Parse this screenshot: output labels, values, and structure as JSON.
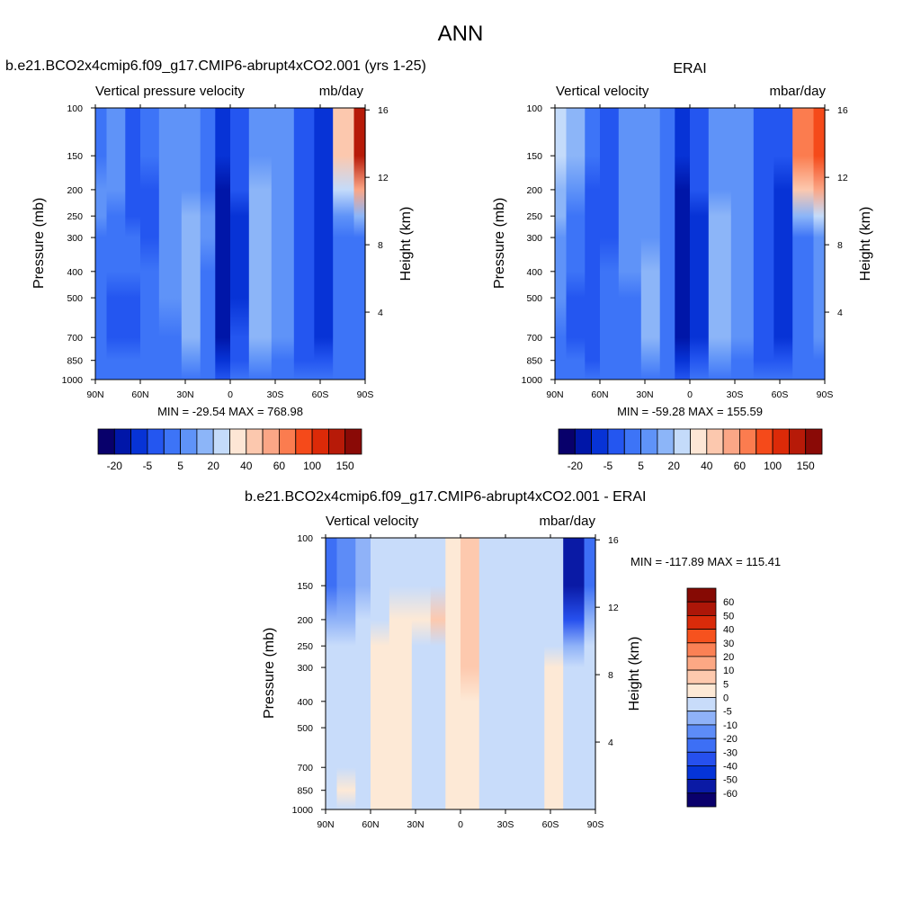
{
  "figure": {
    "title": "ANN"
  },
  "colors": {
    "test_ctrl_palette": [
      "#08006b",
      "#0016a8",
      "#0733d6",
      "#2456f0",
      "#3d74f7",
      "#5f93f8",
      "#8cb5f8",
      "#c4dbfa",
      "#fde6d5",
      "#fcc8ae",
      "#fba686",
      "#fb7c4f",
      "#f54a1a",
      "#dc2a08",
      "#b71a08",
      "#8a0a06"
    ],
    "diff_palette": [
      "#0a006c",
      "#0a1aa5",
      "#0534d8",
      "#2650ee",
      "#3d6ff5",
      "#5d8cf7",
      "#8fb2f8",
      "#c8dcfa",
      "#fde9d6",
      "#fdc9ae",
      "#fca884",
      "#fb8155",
      "#f6521e",
      "#d92b0a",
      "#ad1608",
      "#860a04"
    ]
  },
  "chart_data": [
    {
      "id": "test",
      "type": "heatmap",
      "title": "b.e21.BCO2x4cmip6.f09_g17.CMIP6-abrupt4xCO2.001 (yrs 1-25)",
      "left_label": "Vertical pressure velocity",
      "right_label": "mb/day",
      "xlabel": "",
      "ylabel": "Pressure (mb)",
      "ylabel_right": "Height (km)",
      "x_ticks": [
        "90N",
        "60N",
        "30N",
        "0",
        "30S",
        "60S",
        "90S"
      ],
      "x_values": [
        90,
        60,
        30,
        0,
        -30,
        -60,
        -90
      ],
      "y_ticks": [
        100,
        150,
        200,
        250,
        300,
        400,
        500,
        700,
        850,
        1000
      ],
      "y_range": [
        100,
        1000
      ],
      "height_ticks": [
        4,
        8,
        12,
        16
      ],
      "stats_label": "MIN = -29.54  MAX = 768.98",
      "min": -29.54,
      "max": 768.98,
      "colorbar_orientation": "horizontal",
      "colorbar_labels": [
        "-20",
        "-5",
        "5",
        "20",
        "40",
        "60",
        "100",
        "150"
      ],
      "field_levels": [
        {
          "lat": 90,
          "levels": [
            4,
            4,
            4,
            4,
            4,
            4,
            5,
            5,
            4
          ]
        },
        {
          "lat": 75,
          "levels": [
            4,
            4,
            3,
            3,
            4,
            4,
            4,
            5,
            5
          ]
        },
        {
          "lat": 65,
          "levels": [
            4,
            4,
            3,
            3,
            4,
            4,
            3,
            3,
            3
          ]
        },
        {
          "lat": 55,
          "levels": [
            4,
            4,
            4,
            4,
            4,
            3,
            3,
            3,
            4
          ]
        },
        {
          "lat": 40,
          "levels": [
            4,
            4,
            4,
            5,
            5,
            5,
            5,
            5,
            5
          ]
        },
        {
          "lat": 25,
          "levels": [
            4,
            5,
            6,
            6,
            6,
            6,
            6,
            5,
            5
          ]
        },
        {
          "lat": 15,
          "levels": [
            4,
            4,
            4,
            4,
            4,
            5,
            5,
            4,
            4
          ]
        },
        {
          "lat": 5,
          "levels": [
            3,
            2,
            1,
            1,
            1,
            1,
            1,
            1,
            2
          ]
        },
        {
          "lat": -5,
          "levels": [
            4,
            3,
            3,
            2,
            2,
            2,
            2,
            3,
            3
          ]
        },
        {
          "lat": -20,
          "levels": [
            4,
            5,
            6,
            6,
            6,
            6,
            6,
            6,
            5
          ]
        },
        {
          "lat": -35,
          "levels": [
            4,
            4,
            5,
            5,
            5,
            5,
            5,
            5,
            5
          ]
        },
        {
          "lat": -50,
          "levels": [
            4,
            3,
            3,
            3,
            3,
            3,
            3,
            3,
            3
          ]
        },
        {
          "lat": -62,
          "levels": [
            4,
            3,
            2,
            2,
            2,
            2,
            2,
            2,
            2
          ]
        },
        {
          "lat": -75,
          "levels": [
            4,
            4,
            4,
            4,
            4,
            4,
            5,
            7,
            9
          ]
        },
        {
          "lat": -90,
          "levels": [
            4,
            4,
            4,
            4,
            4,
            4,
            6,
            10,
            14
          ]
        }
      ]
    },
    {
      "id": "ctrl",
      "type": "heatmap",
      "title": "ERAI",
      "left_label": "Vertical velocity",
      "right_label": "mbar/day",
      "xlabel": "",
      "ylabel": "Pressure (mb)",
      "ylabel_right": "Height (km)",
      "x_ticks": [
        "90N",
        "60N",
        "30N",
        "0",
        "30S",
        "60S",
        "90S"
      ],
      "x_values": [
        90,
        60,
        30,
        0,
        -30,
        -60,
        -90
      ],
      "y_ticks": [
        100,
        150,
        200,
        250,
        300,
        400,
        500,
        700,
        850,
        1000
      ],
      "y_range": [
        100,
        1000
      ],
      "height_ticks": [
        4,
        8,
        12,
        16
      ],
      "stats_label": "MIN = -59.28  MAX = 155.59",
      "min": -59.28,
      "max": 155.59,
      "colorbar_orientation": "horizontal",
      "colorbar_labels": [
        "-20",
        "-5",
        "5",
        "20",
        "40",
        "60",
        "100",
        "150"
      ],
      "field_levels": [
        {
          "lat": 90,
          "levels": [
            4,
            4,
            4,
            5,
            5,
            5,
            6,
            6,
            7
          ]
        },
        {
          "lat": 75,
          "levels": [
            4,
            4,
            3,
            3,
            4,
            4,
            4,
            5,
            6
          ]
        },
        {
          "lat": 65,
          "levels": [
            4,
            3,
            3,
            3,
            3,
            3,
            3,
            3,
            4
          ]
        },
        {
          "lat": 55,
          "levels": [
            4,
            4,
            4,
            4,
            4,
            3,
            3,
            3,
            3
          ]
        },
        {
          "lat": 40,
          "levels": [
            4,
            4,
            4,
            4,
            5,
            5,
            5,
            5,
            5
          ]
        },
        {
          "lat": 25,
          "levels": [
            4,
            5,
            6,
            6,
            6,
            5,
            5,
            5,
            5
          ]
        },
        {
          "lat": 15,
          "levels": [
            4,
            4,
            4,
            4,
            4,
            4,
            4,
            4,
            4
          ]
        },
        {
          "lat": 5,
          "levels": [
            3,
            2,
            1,
            1,
            1,
            1,
            1,
            1,
            2
          ]
        },
        {
          "lat": -5,
          "levels": [
            4,
            3,
            2,
            2,
            2,
            2,
            2,
            3,
            3
          ]
        },
        {
          "lat": -20,
          "levels": [
            4,
            5,
            6,
            6,
            6,
            6,
            6,
            5,
            5
          ]
        },
        {
          "lat": -35,
          "levels": [
            4,
            4,
            5,
            5,
            5,
            5,
            5,
            5,
            5
          ]
        },
        {
          "lat": -50,
          "levels": [
            4,
            3,
            3,
            3,
            3,
            3,
            3,
            3,
            3
          ]
        },
        {
          "lat": -62,
          "levels": [
            4,
            3,
            2,
            2,
            2,
            2,
            2,
            2,
            3
          ]
        },
        {
          "lat": -75,
          "levels": [
            4,
            4,
            4,
            4,
            4,
            4,
            6,
            9,
            11
          ]
        },
        {
          "lat": -90,
          "levels": [
            4,
            4,
            5,
            5,
            5,
            5,
            7,
            10,
            12
          ]
        }
      ]
    },
    {
      "id": "diff",
      "type": "heatmap",
      "title": "b.e21.BCO2x4cmip6.f09_g17.CMIP6-abrupt4xCO2.001 - ERAI",
      "left_label": "Vertical velocity",
      "right_label": "mbar/day",
      "xlabel": "",
      "ylabel": "Pressure (mb)",
      "ylabel_right": "Height (km)",
      "x_ticks": [
        "90N",
        "60N",
        "30N",
        "0",
        "30S",
        "60S",
        "90S"
      ],
      "x_values": [
        90,
        60,
        30,
        0,
        -30,
        -60,
        -90
      ],
      "y_ticks": [
        100,
        150,
        200,
        250,
        300,
        400,
        500,
        700,
        850,
        1000
      ],
      "y_range": [
        100,
        1000
      ],
      "height_ticks": [
        4,
        8,
        12,
        16
      ],
      "stats_label": "MIN = -117.89  MAX = 115.41",
      "min": -117.89,
      "max": 115.41,
      "colorbar_orientation": "vertical",
      "colorbar_labels": [
        "60",
        "50",
        "40",
        "30",
        "20",
        "10",
        "5",
        "0",
        "-5",
        "-10",
        "-20",
        "-30",
        "-40",
        "-50",
        "-60"
      ],
      "field_levels": [
        {
          "lat": 90,
          "levels": [
            7,
            7,
            7,
            7,
            7,
            7,
            7,
            6,
            4
          ]
        },
        {
          "lat": 75,
          "levels": [
            7,
            8,
            7,
            7,
            7,
            7,
            7,
            6,
            5
          ]
        },
        {
          "lat": 65,
          "levels": [
            7,
            7,
            7,
            7,
            7,
            7,
            7,
            7,
            6
          ]
        },
        {
          "lat": 55,
          "levels": [
            8,
            8,
            8,
            8,
            8,
            8,
            8,
            7,
            7
          ]
        },
        {
          "lat": 40,
          "levels": [
            8,
            8,
            8,
            8,
            8,
            8,
            8,
            8,
            7
          ]
        },
        {
          "lat": 25,
          "levels": [
            7,
            7,
            7,
            7,
            7,
            7,
            7,
            8,
            7
          ]
        },
        {
          "lat": 15,
          "levels": [
            7,
            7,
            7,
            7,
            7,
            7,
            7,
            9,
            7
          ]
        },
        {
          "lat": 5,
          "levels": [
            8,
            8,
            8,
            8,
            8,
            8,
            8,
            8,
            8
          ]
        },
        {
          "lat": -5,
          "levels": [
            8,
            8,
            8,
            8,
            8,
            9,
            9,
            9,
            9
          ]
        },
        {
          "lat": -20,
          "levels": [
            7,
            7,
            7,
            7,
            7,
            7,
            7,
            7,
            7
          ]
        },
        {
          "lat": -35,
          "levels": [
            7,
            7,
            7,
            7,
            7,
            7,
            7,
            7,
            7
          ]
        },
        {
          "lat": -50,
          "levels": [
            7,
            7,
            7,
            7,
            7,
            7,
            7,
            7,
            7
          ]
        },
        {
          "lat": -62,
          "levels": [
            8,
            8,
            8,
            8,
            8,
            8,
            7,
            7,
            7
          ]
        },
        {
          "lat": -75,
          "levels": [
            7,
            7,
            7,
            7,
            7,
            7,
            6,
            3,
            1
          ]
        },
        {
          "lat": -90,
          "levels": [
            7,
            7,
            7,
            7,
            7,
            7,
            7,
            6,
            4
          ]
        }
      ]
    }
  ]
}
